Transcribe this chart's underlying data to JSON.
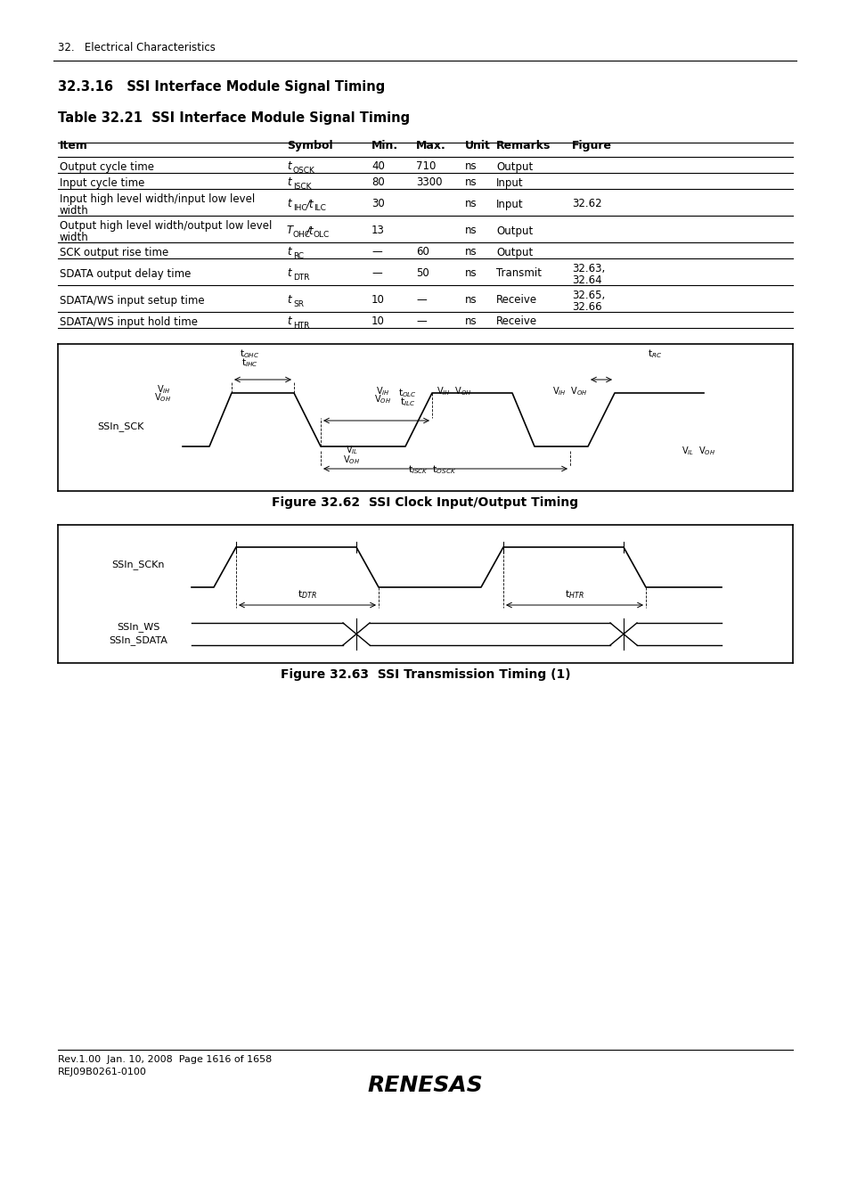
{
  "page_header": "32.   Electrical Characteristics",
  "section_title": "32.3.16   SSI Interface Module Signal Timing",
  "table_title": "Table 32.21  SSI Interface Module Signal Timing",
  "table_headers": [
    "Item",
    "Symbol",
    "Min.",
    "Max.",
    "Unit",
    "Remarks",
    "Figure"
  ],
  "table_rows": [
    [
      "Output cycle time",
      "t_OSCK",
      "40",
      "710",
      "ns",
      "Output",
      ""
    ],
    [
      "Input cycle time",
      "t_ISCK",
      "80",
      "3300",
      "ns",
      "Input",
      ""
    ],
    [
      "Input high level width/input low level\nwidth",
      "t_IHC/t_ILC",
      "30",
      "",
      "ns",
      "Input",
      "32.62"
    ],
    [
      "Output high level width/output low level\nwidth",
      "T_OHC/t_OLC",
      "13",
      "",
      "ns",
      "Output",
      ""
    ],
    [
      "SCK output rise time",
      "t_RC",
      "—",
      "60",
      "ns",
      "Output",
      ""
    ],
    [
      "SDATA output delay time",
      "t_DTR",
      "—",
      "50",
      "ns",
      "Transmit",
      "32.63,\n32.64"
    ],
    [
      "SDATA/WS input setup time",
      "t_SR",
      "10",
      "—",
      "ns",
      "Receive",
      "32.65,\n32.66"
    ],
    [
      "SDATA/WS input hold time",
      "t_HTR",
      "10",
      "—",
      "ns",
      "Receive",
      ""
    ]
  ],
  "fig1_title": "Figure 32.62  SSI Clock Input/Output Timing",
  "fig2_title": "Figure 32.63  SSI Transmission Timing (1)",
  "footer_line1": "Rev.1.00  Jan. 10, 2008  Page 1616 of 1658",
  "footer_line2": "REJ09B0261-0100",
  "bg_color": "#ffffff",
  "border_color": "#000000",
  "text_color": "#000000"
}
